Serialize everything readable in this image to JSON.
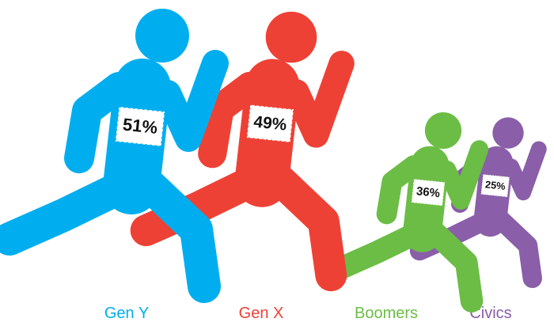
{
  "chart_data": {
    "type": "pictograph",
    "categories": [
      "Gen Y",
      "Gen X",
      "Boomers",
      "Civics"
    ],
    "values": [
      51,
      49,
      36,
      25
    ],
    "value_labels": [
      "51%",
      "49%",
      "36%",
      "25%"
    ],
    "colors": [
      "#00aeef",
      "#ee4136",
      "#6cbd45",
      "#8a5ea8"
    ]
  }
}
